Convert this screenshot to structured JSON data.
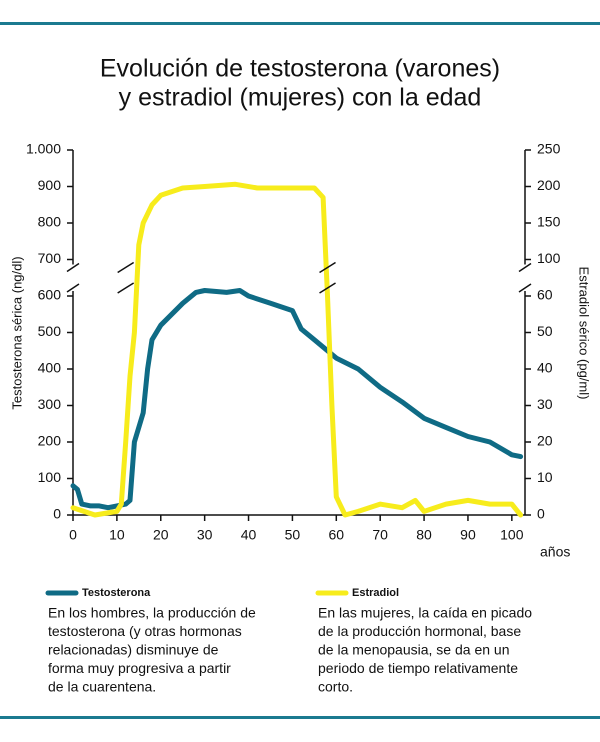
{
  "chart_data": {
    "type": "line",
    "title": [
      "Evolución de testosterona (varones)",
      "y estradiol (mujeres) con la edad"
    ],
    "y_label": "Testosterona sérica (ng/dl)",
    "y2_label": "Estradiol sérico (pg/ml)",
    "x_label": "años",
    "xlim": [
      0,
      103
    ],
    "xticks": [
      0,
      10,
      20,
      30,
      40,
      50,
      60,
      70,
      80,
      90,
      100
    ],
    "ylim": [
      0,
      1000
    ],
    "yticks": [
      0,
      100,
      200,
      300,
      400,
      500,
      600,
      700,
      800,
      900,
      {
        "value": 1000,
        "label": "1.000"
      }
    ],
    "y2lim": [
      0,
      250
    ],
    "y2ticks": [
      0,
      10,
      20,
      30,
      40,
      50,
      60,
      100,
      150,
      200,
      250
    ],
    "axis_break": true,
    "series": [
      {
        "name": "Testosterona",
        "color": "#0f6b85",
        "x": [
          0,
          1,
          2,
          4,
          6,
          8,
          10,
          12,
          13,
          14,
          16,
          17,
          18,
          20,
          25,
          28,
          30,
          35,
          38,
          40,
          45,
          50,
          52,
          55,
          60,
          65,
          70,
          75,
          80,
          85,
          90,
          95,
          100,
          102
        ],
        "values": [
          80,
          70,
          30,
          25,
          25,
          20,
          25,
          30,
          40,
          200,
          280,
          400,
          480,
          520,
          580,
          610,
          615,
          610,
          615,
          600,
          580,
          560,
          510,
          480,
          430,
          400,
          350,
          310,
          265,
          240,
          215,
          200,
          165,
          160
        ],
        "description": [
          "En los hombres, la producción de",
          "testosterona (y otras hormonas",
          "relacionadas) disminuye de",
          "forma muy progresiva a partir",
          "de la cuarentena."
        ]
      },
      {
        "name": "Estradiol",
        "color": "#f7ec1c",
        "axis": "y2",
        "x": [
          0,
          5,
          10,
          11,
          12,
          13,
          14,
          15,
          16,
          18,
          20,
          25,
          30,
          37,
          42,
          45,
          55,
          57,
          58,
          59,
          60,
          62,
          65,
          70,
          75,
          78,
          80,
          85,
          90,
          95,
          100,
          102
        ],
        "values": [
          2,
          0,
          1,
          3,
          20,
          38,
          50,
          120,
          150,
          175,
          188,
          198,
          200,
          203,
          198,
          198,
          198,
          185,
          60,
          30,
          5,
          0,
          1,
          3,
          2,
          4,
          1,
          3,
          4,
          3,
          3,
          0
        ],
        "description": [
          "En las mujeres, la caída en picado",
          "de la producción hormonal, base",
          "de la menopausia, se da en un",
          "periodo de tiempo relativamente",
          "corto."
        ]
      }
    ]
  }
}
